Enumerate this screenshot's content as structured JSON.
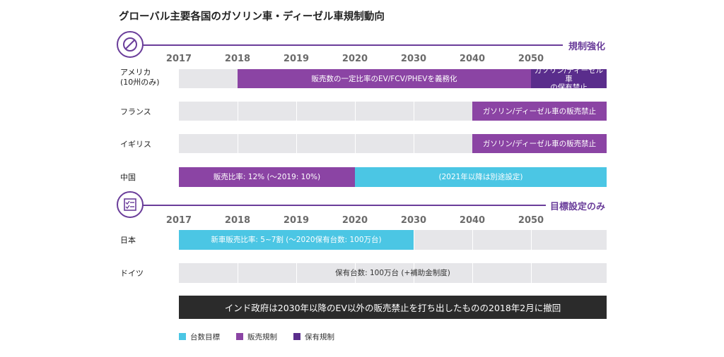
{
  "title": "グローバル主要各国のガソリン車・ディーゼル車規制動向",
  "colors": {
    "target": "#4bc6e4",
    "sales": "#8b44a4",
    "ownership": "#5a2d8c",
    "track": "#e6e6e9",
    "accent": "#6a3d9a",
    "notice": "#2b2b2b"
  },
  "sections": {
    "regulation": {
      "label": "規制強化",
      "icon": "prohibition-icon"
    },
    "target": {
      "label": "目標設定のみ",
      "icon": "checklist-icon"
    }
  },
  "years": [
    "2017",
    "2018",
    "2019",
    "2020",
    "2030",
    "2040",
    "2050"
  ],
  "rows": [
    {
      "country": "アメリカ\n(10州のみ)",
      "segments": [
        {
          "start": 1,
          "end": 6,
          "type": "sales",
          "label": "販売数の一定比率のEV/FCV/PHEVを義務化"
        },
        {
          "start": 6,
          "end": 7.3,
          "type": "ownership",
          "label": "ガソリン/ディーゼル車\nの保有禁止"
        }
      ]
    },
    {
      "country": "フランス",
      "segments": [
        {
          "start": 5,
          "end": 7.3,
          "type": "sales",
          "label": "ガソリン/ディーゼル車の販売禁止"
        }
      ]
    },
    {
      "country": "イギリス",
      "segments": [
        {
          "start": 5,
          "end": 7.3,
          "type": "sales",
          "label": "ガソリン/ディーゼル車の販売禁止"
        }
      ]
    },
    {
      "country": "中国",
      "segments": [
        {
          "start": 0,
          "end": 3,
          "type": "sales",
          "label": "販売比率: 12% (〜2019: 10%)"
        },
        {
          "start": 3,
          "end": 7.3,
          "type": "target",
          "label": "(2021年以降は別途設定)"
        }
      ]
    },
    {
      "country": "日本",
      "segments": [
        {
          "start": 0,
          "end": 4,
          "type": "target",
          "label": "新車販売比率: 5~7割 (〜2020保有台数: 100万台)"
        }
      ]
    },
    {
      "country": "ドイツ",
      "segments": [
        {
          "start": 0,
          "end": 7.3,
          "type": "none",
          "label": "保有台数: 100万台 (+補助金制度)"
        }
      ]
    }
  ],
  "notice": "インド政府は2030年以降のEV以外の販売禁止を打ち出したものの2018年2月に撤回",
  "legend": [
    {
      "label": "台数目標",
      "type": "target"
    },
    {
      "label": "販売規制",
      "type": "sales"
    },
    {
      "label": "保有規制",
      "type": "ownership"
    }
  ]
}
